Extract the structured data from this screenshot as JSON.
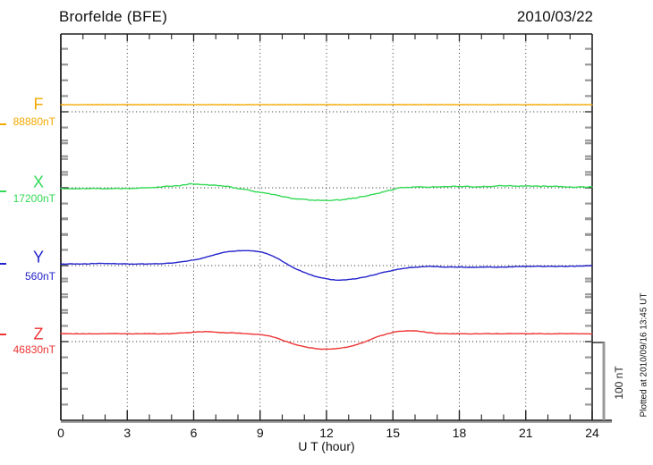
{
  "header": {
    "title": "Brorfelde (BFE)",
    "date": "2010/03/22"
  },
  "channels": [
    {
      "id": "F",
      "label": "F",
      "value_label": "88880nT",
      "color": "#f5a800"
    },
    {
      "id": "X",
      "label": "X",
      "value_label": "17200nT",
      "color": "#33d955"
    },
    {
      "id": "Y",
      "label": "Y",
      "value_label": "560nT",
      "color": "#2222cc"
    },
    {
      "id": "Z",
      "label": "Z",
      "value_label": "46830nT",
      "color": "#ee3333"
    }
  ],
  "x_axis": {
    "label": "U T (hour)",
    "tick_labels": [
      "0",
      "3",
      "6",
      "9",
      "12",
      "15",
      "18",
      "21",
      "24"
    ],
    "major_tick_hours": [
      0,
      3,
      6,
      9,
      12,
      15,
      18,
      21,
      24
    ],
    "minor_step_hours": 1,
    "range": [
      0,
      24
    ]
  },
  "scale_bar": {
    "label": "100 nT",
    "span_nT": 100
  },
  "footer_note": "Plotted at 2010/09/16 13:45 UT",
  "chart_data": {
    "type": "line",
    "title": "Brorfelde (BFE) magnetogram, 2010/03/22",
    "xlabel": "U T (hour)",
    "x_range": [
      0,
      24
    ],
    "grid": true,
    "grid_style": "dotted vertical lines every 3 hours; dotted horizontal baseline per channel",
    "y_scale_note": "offsets in nT relative to each channel's labeled baseline value; scale bar = 100 nT",
    "series": [
      {
        "name": "F",
        "baseline_nT": 88880,
        "color": "#f5a800",
        "points": [
          [
            0,
            9
          ],
          [
            6,
            9
          ],
          [
            12,
            9
          ],
          [
            18,
            9
          ],
          [
            24,
            9
          ]
        ]
      },
      {
        "name": "X",
        "baseline_nT": 17200,
        "color": "#33d955",
        "points": [
          [
            0,
            -1
          ],
          [
            1,
            -1
          ],
          [
            2,
            -1
          ],
          [
            3,
            -1
          ],
          [
            4,
            0
          ],
          [
            4.5,
            1
          ],
          [
            5,
            2
          ],
          [
            5.5,
            3
          ],
          [
            6,
            6
          ],
          [
            6.3,
            4
          ],
          [
            7,
            3
          ],
          [
            7.5,
            2
          ],
          [
            8,
            -1
          ],
          [
            8.5,
            -3
          ],
          [
            9,
            -6
          ],
          [
            9.5,
            -8
          ],
          [
            10,
            -11
          ],
          [
            10.5,
            -14
          ],
          [
            11,
            -15
          ],
          [
            11.5,
            -16
          ],
          [
            12,
            -16
          ],
          [
            12.5,
            -16
          ],
          [
            13,
            -14
          ],
          [
            13.5,
            -12
          ],
          [
            14,
            -9
          ],
          [
            14.5,
            -6
          ],
          [
            15,
            -2
          ],
          [
            15.5,
            1
          ],
          [
            16,
            1
          ],
          [
            17,
            1
          ],
          [
            17.5,
            2
          ],
          [
            18,
            2
          ],
          [
            19,
            1
          ],
          [
            19.5,
            2
          ],
          [
            20,
            3
          ],
          [
            21,
            2
          ],
          [
            22,
            2
          ],
          [
            23,
            1
          ],
          [
            24,
            1
          ]
        ]
      },
      {
        "name": "Y",
        "baseline_nT": 560,
        "color": "#2222cc",
        "points": [
          [
            0,
            2
          ],
          [
            1,
            2
          ],
          [
            2,
            3
          ],
          [
            3,
            2
          ],
          [
            4,
            2
          ],
          [
            5,
            3
          ],
          [
            5.5,
            5
          ],
          [
            6,
            7
          ],
          [
            6.5,
            10
          ],
          [
            7,
            14
          ],
          [
            7.5,
            18
          ],
          [
            8,
            19
          ],
          [
            8.5,
            19
          ],
          [
            9,
            18
          ],
          [
            9.5,
            14
          ],
          [
            10,
            6
          ],
          [
            10.5,
            -3
          ],
          [
            11,
            -9
          ],
          [
            11.5,
            -14
          ],
          [
            12,
            -17
          ],
          [
            12.5,
            -19
          ],
          [
            13,
            -18
          ],
          [
            13.5,
            -16
          ],
          [
            14,
            -13
          ],
          [
            14.5,
            -9
          ],
          [
            15,
            -6
          ],
          [
            15.5,
            -3
          ],
          [
            16,
            -2
          ],
          [
            16.5,
            -1
          ],
          [
            17,
            -1
          ],
          [
            17.5,
            -2
          ],
          [
            18,
            -2
          ],
          [
            19,
            -2
          ],
          [
            20,
            -2
          ],
          [
            21,
            -1
          ],
          [
            22,
            -1
          ],
          [
            23,
            -1
          ],
          [
            24,
            0
          ]
        ]
      },
      {
        "name": "Z",
        "baseline_nT": 46830,
        "color": "#ee3333",
        "points": [
          [
            0,
            10
          ],
          [
            1,
            10
          ],
          [
            2,
            10
          ],
          [
            3,
            10
          ],
          [
            4,
            10
          ],
          [
            5,
            10
          ],
          [
            5.5,
            11
          ],
          [
            6,
            12
          ],
          [
            6.5,
            13
          ],
          [
            7,
            12
          ],
          [
            7.5,
            11
          ],
          [
            8,
            11
          ],
          [
            8.5,
            10
          ],
          [
            9,
            9
          ],
          [
            9.5,
            7
          ],
          [
            10,
            2
          ],
          [
            10.5,
            -3
          ],
          [
            11,
            -7
          ],
          [
            11.5,
            -9
          ],
          [
            12,
            -10
          ],
          [
            12.5,
            -9
          ],
          [
            13,
            -7
          ],
          [
            13.5,
            -3
          ],
          [
            14,
            3
          ],
          [
            14.5,
            8
          ],
          [
            15,
            12
          ],
          [
            15.5,
            14
          ],
          [
            16,
            14
          ],
          [
            16.5,
            12
          ],
          [
            17,
            10
          ],
          [
            17.5,
            10
          ],
          [
            18,
            10
          ],
          [
            19,
            10
          ],
          [
            20,
            10
          ],
          [
            21,
            10
          ],
          [
            22,
            10
          ],
          [
            23,
            10
          ],
          [
            24,
            10
          ]
        ]
      }
    ]
  }
}
